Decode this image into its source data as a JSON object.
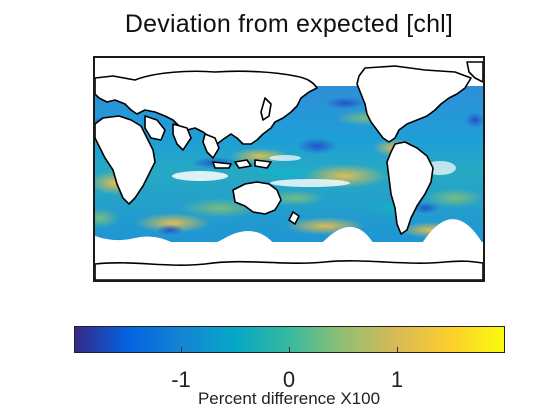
{
  "title": "Deviation from expected [chl]",
  "colorbar": {
    "label": "Percent difference X100",
    "ticks": [
      "-1",
      "0",
      "1"
    ],
    "tick_values": [
      -1,
      0,
      1
    ],
    "range": [
      -2,
      2
    ],
    "colormap": "parula",
    "colors": [
      "#352a87",
      "#0363e1",
      "#1485d4",
      "#06a7c6",
      "#38b99e",
      "#92bf73",
      "#d9ba56",
      "#fcce2e",
      "#f9fb0e"
    ]
  },
  "map": {
    "projection": "equirectangular",
    "center_longitude": 180,
    "land_color": "#ffffff",
    "coastline_color": "#000000",
    "field": "chlorophyll deviation"
  }
}
